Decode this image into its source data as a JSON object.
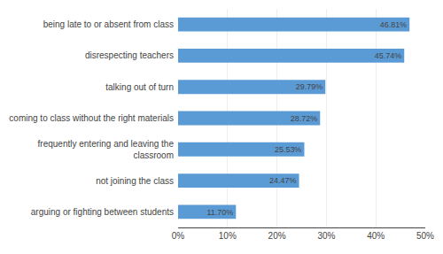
{
  "chart_data": {
    "type": "bar",
    "orientation": "horizontal",
    "categories": [
      "arguing or fighting between students",
      "not joining the class",
      "frequently entering and leaving the\nclassroom",
      "coming to class without the right materials",
      "talking out of turn",
      "disrespecting teachers",
      "being late to or absent from class"
    ],
    "values": [
      11.7,
      24.47,
      25.53,
      28.72,
      29.79,
      45.74,
      46.81
    ],
    "value_labels": [
      "11.70%",
      "24.47%",
      "25.53%",
      "28.72%",
      "29.79%",
      "45.74%",
      "46.81%"
    ],
    "data_labels": true,
    "color": "#5b9bd5",
    "xlim": [
      0,
      50
    ],
    "xticks": [
      {
        "value": 0,
        "label": "0%"
      },
      {
        "value": 10,
        "label": "10%"
      },
      {
        "value": 20,
        "label": "20%"
      },
      {
        "value": 30,
        "label": "30%"
      },
      {
        "value": 40,
        "label": "40%"
      },
      {
        "value": 50,
        "label": "50%"
      }
    ],
    "grid": true
  }
}
